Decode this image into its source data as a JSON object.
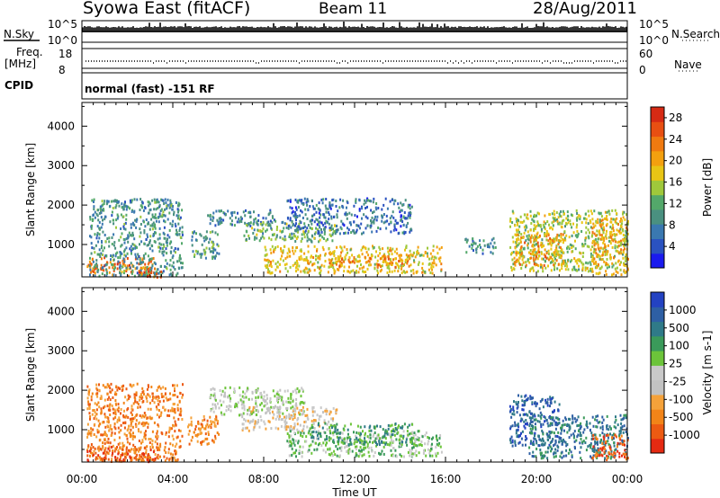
{
  "header": {
    "title": "Syowa East (fitACF)",
    "beam": "Beam 11",
    "date": "28/Aug/2011"
  },
  "strips": {
    "nsky": {
      "label": "N.Sky",
      "ticks": [
        "10^5",
        "10^0"
      ]
    },
    "nsearch": {
      "label": "N.Search",
      "ticks": [
        "10^5",
        "10^0"
      ]
    },
    "freq": {
      "label_line1": "Freq.",
      "label_line2": "[MHz]",
      "ticks": [
        "18",
        "8"
      ]
    },
    "nave": {
      "label": "Nave",
      "ticks": [
        "60",
        "0"
      ]
    },
    "cpid": {
      "label": "CPID",
      "program": "normal (fast) -151 RF"
    }
  },
  "colors": {
    "power": [
      "#1a1aee",
      "#2a52c0",
      "#3a78b0",
      "#4a9080",
      "#53a86a",
      "#9fc83b",
      "#e8c515",
      "#f3a00f",
      "#f07a10",
      "#e84f12",
      "#d62a14"
    ],
    "velocity": [
      "#2342c2",
      "#2e5fa4",
      "#2f7a88",
      "#3a9a5a",
      "#6cc43a",
      "#c9c9c9",
      "#c2c2c2",
      "#f5a23a",
      "#f28418",
      "#ec5a12",
      "#e52a12"
    ]
  },
  "chart_data": [
    {
      "type": "heatmap",
      "parameter": "Power",
      "ylabel": "Slant Range [km]",
      "xlabel": "Time UT",
      "xticks": [
        "00:00",
        "04:00",
        "08:00",
        "12:00",
        "16:00",
        "20:00",
        "00:00"
      ],
      "xlim_hours": [
        0,
        24
      ],
      "yticks": [
        1000,
        2000,
        3000,
        4000
      ],
      "ylim_km": [
        180,
        4600
      ],
      "colorbar": {
        "label": "Power [dB]",
        "ticks": [
          4,
          8,
          12,
          16,
          20,
          24,
          28
        ],
        "range": [
          0,
          30
        ]
      },
      "regions": [
        {
          "t": [
            0.2,
            3.2
          ],
          "r": [
            230,
            700
          ],
          "v": 24
        },
        {
          "t": [
            0.3,
            4.4
          ],
          "r": [
            230,
            2200
          ],
          "v": 9
        },
        {
          "t": [
            2.4,
            3.6
          ],
          "r": [
            200,
            420
          ],
          "v": 26
        },
        {
          "t": [
            4.8,
            6.0
          ],
          "r": [
            650,
            1400
          ],
          "v": 10
        },
        {
          "t": [
            5.5,
            8.6
          ],
          "r": [
            1500,
            1900
          ],
          "v": 7
        },
        {
          "t": [
            7.0,
            11.2
          ],
          "r": [
            1100,
            1600
          ],
          "v": 12
        },
        {
          "t": [
            8.0,
            15.8
          ],
          "r": [
            300,
            1000
          ],
          "v": 18
        },
        {
          "t": [
            10.8,
            14.4
          ],
          "r": [
            450,
            780
          ],
          "v": 22
        },
        {
          "t": [
            9.0,
            14.5
          ],
          "r": [
            1300,
            2200
          ],
          "v": 6
        },
        {
          "t": [
            16.8,
            18.2
          ],
          "r": [
            800,
            1200
          ],
          "v": 8
        },
        {
          "t": [
            18.8,
            24.0
          ],
          "r": [
            350,
            1900
          ],
          "v": 15
        },
        {
          "t": [
            19.0,
            21.2
          ],
          "r": [
            500,
            1300
          ],
          "v": 22
        },
        {
          "t": [
            22.4,
            24.0
          ],
          "r": [
            250,
            1700
          ],
          "v": 20
        }
      ]
    },
    {
      "type": "heatmap",
      "parameter": "Velocity",
      "ylabel": "Slant Range [km]",
      "xlabel": "Time UT",
      "xticks": [
        "00:00",
        "04:00",
        "08:00",
        "12:00",
        "16:00",
        "20:00",
        "00:00"
      ],
      "xlim_hours": [
        0,
        24
      ],
      "yticks": [
        1000,
        2000,
        3000,
        4000
      ],
      "ylim_km": [
        180,
        4600
      ],
      "colorbar": {
        "label": "Velocity [m s-1]",
        "ticks": [
          1000,
          500,
          100,
          25,
          -25,
          -100,
          -500,
          -1000
        ]
      },
      "regions": [
        {
          "t": [
            0.2,
            4.4
          ],
          "r": [
            230,
            2200
          ],
          "v": 8
        },
        {
          "t": [
            0.2,
            3.4
          ],
          "r": [
            220,
            600
          ],
          "v": 9
        },
        {
          "t": [
            4.6,
            6.0
          ],
          "r": [
            650,
            1400
          ],
          "v": 8
        },
        {
          "t": [
            5.6,
            9.8
          ],
          "r": [
            1400,
            2100
          ],
          "v": 5
        },
        {
          "t": [
            7.0,
            11.2
          ],
          "r": [
            1000,
            1600
          ],
          "v": 6
        },
        {
          "t": [
            9.0,
            15.8
          ],
          "r": [
            350,
            1000
          ],
          "v": 4
        },
        {
          "t": [
            10.0,
            14.5
          ],
          "r": [
            650,
            1200
          ],
          "v": 3
        },
        {
          "t": [
            18.8,
            21.0
          ],
          "r": [
            600,
            1900
          ],
          "v": 1
        },
        {
          "t": [
            19.6,
            24.0
          ],
          "r": [
            300,
            1400
          ],
          "v": 2
        },
        {
          "t": [
            22.4,
            24.0
          ],
          "r": [
            250,
            900
          ],
          "v": 9
        }
      ]
    }
  ]
}
